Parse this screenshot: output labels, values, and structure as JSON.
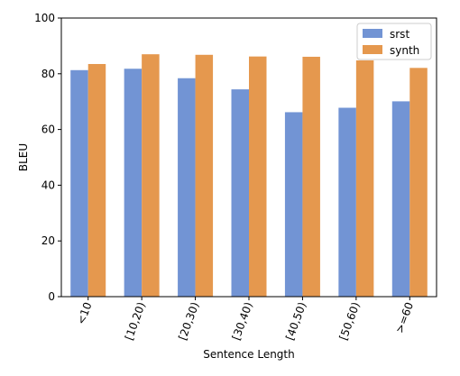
{
  "chart_data": {
    "type": "bar",
    "categories": [
      "<10",
      "[10,20)",
      "[20,30)",
      "[30,40)",
      "[40,50)",
      "[50,60)",
      ">=60"
    ],
    "series": [
      {
        "name": "srst",
        "values": [
          81.3,
          81.8,
          78.4,
          74.4,
          66.2,
          67.8,
          70.1
        ],
        "color": "#7294d4"
      },
      {
        "name": "synth",
        "values": [
          83.5,
          87.0,
          86.8,
          86.2,
          86.1,
          84.8,
          82.1
        ],
        "color": "#e5984e"
      }
    ],
    "xlabel": "Sentence Length",
    "ylabel": "BLEU",
    "ylim": [
      0,
      100
    ],
    "yticks": [
      0,
      20,
      40,
      60,
      80,
      100
    ],
    "grid": false,
    "legend_position": "top-right"
  }
}
